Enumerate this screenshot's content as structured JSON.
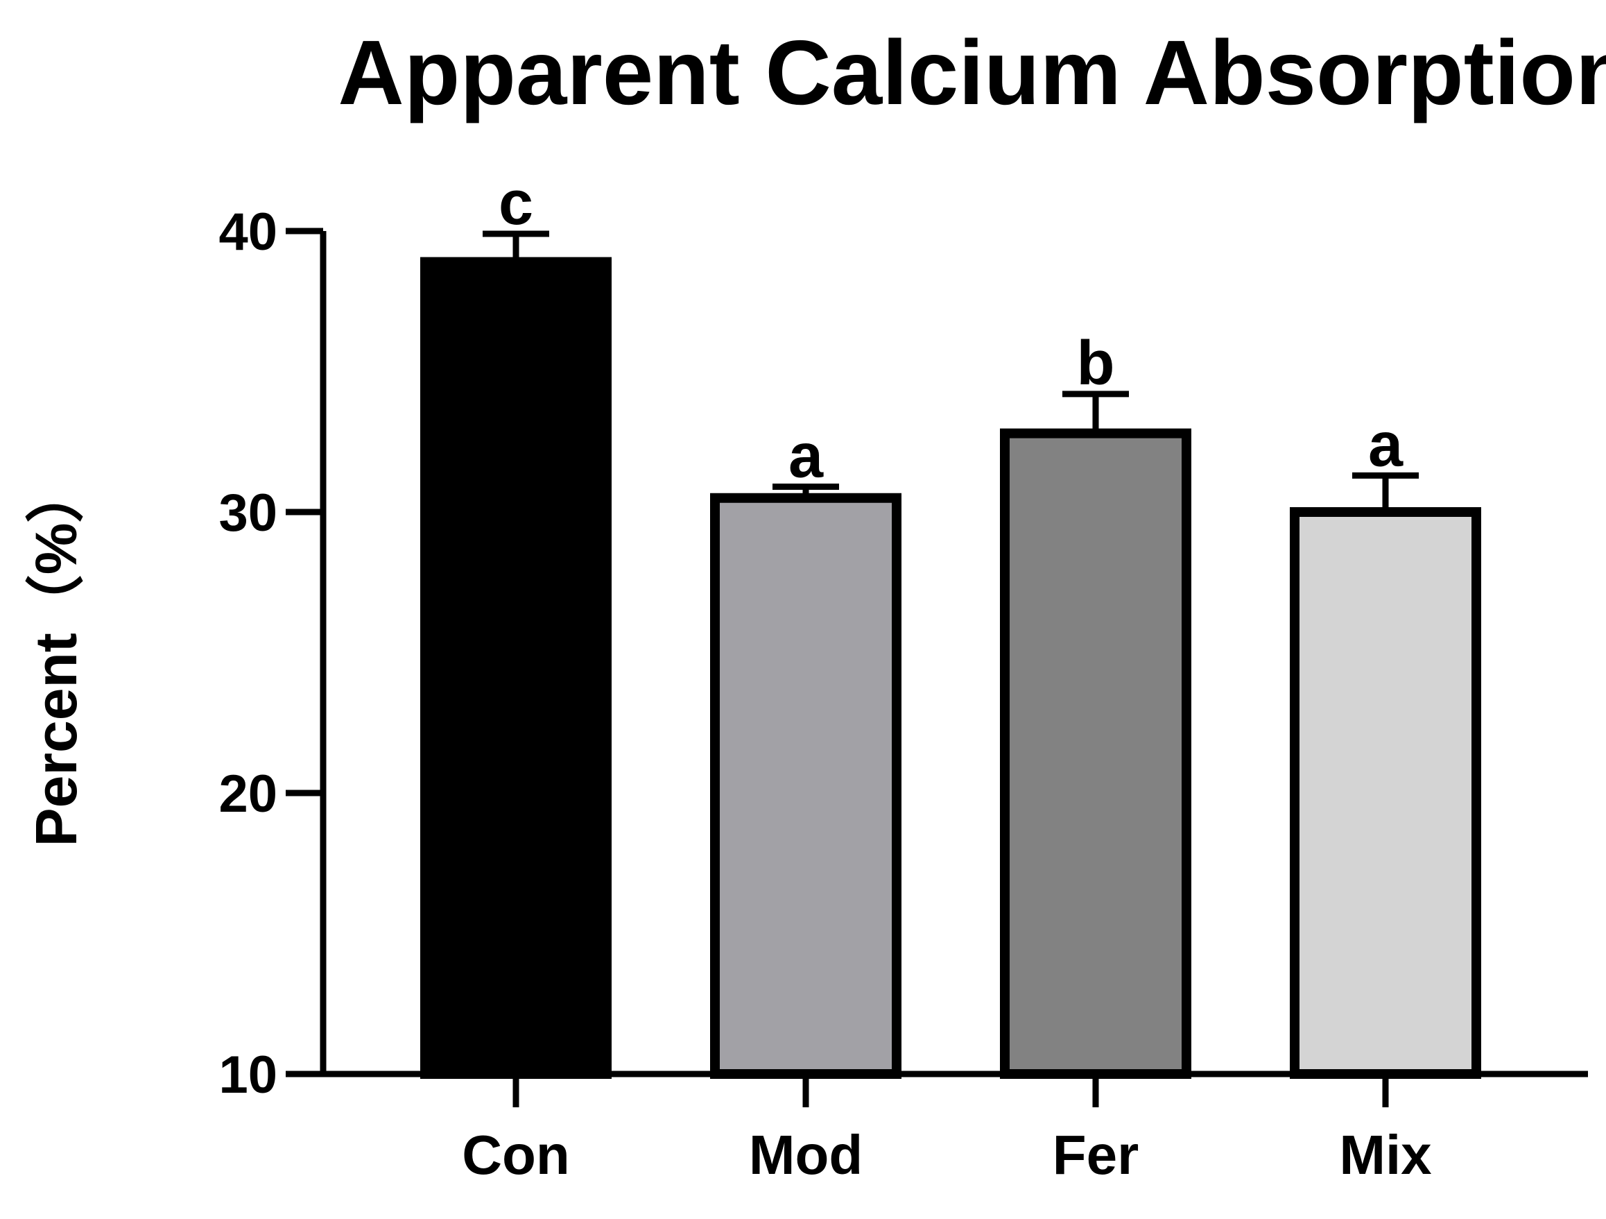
{
  "chart_data": {
    "type": "bar",
    "title": "Apparent Calcium Absorption",
    "xlabel": "",
    "ylabel": "Percent（%）",
    "ylim": [
      10,
      40
    ],
    "yticks": [
      10,
      20,
      30,
      40
    ],
    "categories": [
      "Con",
      "Mod",
      "Fer",
      "Mix"
    ],
    "values": [
      38.9,
      30.5,
      32.8,
      30.0
    ],
    "errors": [
      1.0,
      0.4,
      1.4,
      1.3
    ],
    "significance": [
      "c",
      "a",
      "b",
      "a"
    ],
    "colors": [
      "#000000",
      "#a2a1a6",
      "#828282",
      "#d4d4d4"
    ],
    "grid": false,
    "legend": false
  }
}
